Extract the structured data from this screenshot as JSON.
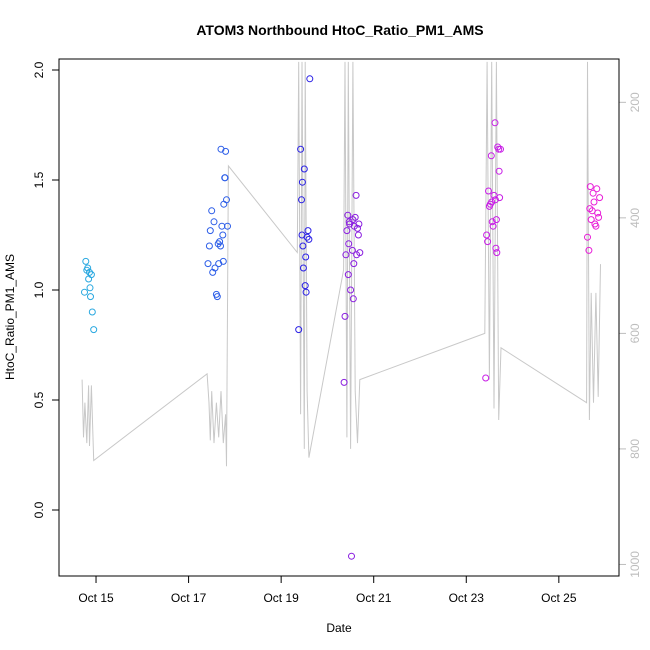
{
  "chart_data": {
    "type": "scatter",
    "title": "ATOM3 Northbound HtoC_Ratio_PM1_AMS",
    "xlabel": "Date",
    "ylabel": "HtoC_Ratio_PM1_AMS",
    "x_unit": "days (day of October)",
    "xlim": [
      14.2,
      26.3
    ],
    "ylim": [
      -0.3,
      2.05
    ],
    "x_ticks": [
      {
        "value": 15,
        "label": "Oct 15"
      },
      {
        "value": 17,
        "label": "Oct 17"
      },
      {
        "value": 19,
        "label": "Oct 19"
      },
      {
        "value": 21,
        "label": "Oct 21"
      },
      {
        "value": 23,
        "label": "Oct 23"
      },
      {
        "value": 25,
        "label": "Oct 25"
      }
    ],
    "y_ticks": [
      {
        "value": 0.0,
        "label": "0.0"
      },
      {
        "value": 0.5,
        "label": "0.5"
      },
      {
        "value": 1.0,
        "label": "1.0"
      },
      {
        "value": 1.5,
        "label": "1.5"
      },
      {
        "value": 2.0,
        "label": "2.0"
      }
    ],
    "secondary_axis": {
      "side": "right",
      "reversed": true,
      "lim": [
        1020,
        125
      ],
      "color": "#bdbdbd",
      "ticks": [
        {
          "value": 200,
          "label": "200"
        },
        {
          "value": 400,
          "label": "400"
        },
        {
          "value": 600,
          "label": "600"
        },
        {
          "value": 800,
          "label": "800"
        },
        {
          "value": 1000,
          "label": "1000"
        }
      ]
    },
    "grid": false,
    "legend": "none",
    "marker": "open-circle",
    "series": [
      {
        "color": "#29a8e0",
        "points": [
          [
            14.75,
            0.99
          ],
          [
            14.78,
            1.13
          ],
          [
            14.8,
            1.09
          ],
          [
            14.82,
            1.1
          ],
          [
            14.84,
            1.05
          ],
          [
            14.86,
            1.08
          ],
          [
            14.87,
            1.01
          ],
          [
            14.88,
            0.97
          ],
          [
            14.9,
            1.07
          ],
          [
            14.92,
            0.9
          ],
          [
            14.95,
            0.82
          ]
        ]
      },
      {
        "color": "#2d5ee8",
        "points": [
          [
            17.42,
            1.12
          ],
          [
            17.45,
            1.2
          ],
          [
            17.47,
            1.27
          ],
          [
            17.5,
            1.36
          ],
          [
            17.52,
            1.08
          ],
          [
            17.55,
            1.31
          ],
          [
            17.57,
            1.1
          ],
          [
            17.6,
            0.98
          ],
          [
            17.62,
            0.97
          ],
          [
            17.64,
            1.21
          ],
          [
            17.65,
            1.12
          ],
          [
            17.67,
            1.22
          ],
          [
            17.69,
            1.2
          ],
          [
            17.7,
            1.64
          ],
          [
            17.72,
            1.29
          ],
          [
            17.74,
            1.25
          ],
          [
            17.75,
            1.13
          ],
          [
            17.76,
            1.39
          ],
          [
            17.78,
            1.51
          ],
          [
            17.79,
            1.51
          ],
          [
            17.8,
            1.63
          ],
          [
            17.82,
            1.41
          ],
          [
            17.84,
            1.29
          ]
        ]
      },
      {
        "color": "#2a20e6",
        "points": [
          [
            19.38,
            0.82
          ],
          [
            19.42,
            1.64
          ],
          [
            19.44,
            1.41
          ],
          [
            19.45,
            1.25
          ],
          [
            19.46,
            1.49
          ],
          [
            19.47,
            1.2
          ],
          [
            19.48,
            1.1
          ],
          [
            19.5,
            1.55
          ],
          [
            19.52,
            1.02
          ],
          [
            19.53,
            1.15
          ],
          [
            19.54,
            0.99
          ],
          [
            19.56,
            1.24
          ],
          [
            19.58,
            1.27
          ],
          [
            19.6,
            1.23
          ],
          [
            19.62,
            1.96
          ]
        ]
      },
      {
        "color": "#8a1ee0",
        "points": [
          [
            20.38,
            0.88
          ],
          [
            20.4,
            1.16
          ],
          [
            20.42,
            1.27
          ],
          [
            20.44,
            1.34
          ],
          [
            20.46,
            1.21
          ],
          [
            20.47,
            1.31
          ],
          [
            20.48,
            1.3
          ],
          [
            20.5,
            1.0
          ],
          [
            20.52,
            -0.21
          ],
          [
            20.54,
            1.18
          ],
          [
            20.55,
            1.32
          ],
          [
            20.56,
            0.96
          ],
          [
            20.57,
            1.12
          ],
          [
            20.58,
            1.29
          ],
          [
            20.6,
            1.33
          ],
          [
            20.62,
            1.43
          ],
          [
            20.63,
            1.16
          ],
          [
            20.65,
            1.28
          ],
          [
            20.67,
            1.25
          ],
          [
            20.68,
            1.3
          ],
          [
            20.7,
            1.17
          ],
          [
            20.36,
            0.58
          ],
          [
            20.45,
            1.07
          ]
        ]
      },
      {
        "color": "#c81ee6",
        "points": [
          [
            23.42,
            0.6
          ],
          [
            23.44,
            1.25
          ],
          [
            23.46,
            1.22
          ],
          [
            23.48,
            1.45
          ],
          [
            23.5,
            1.38
          ],
          [
            23.52,
            1.39
          ],
          [
            23.54,
            1.61
          ],
          [
            23.55,
            1.4
          ],
          [
            23.56,
            1.31
          ],
          [
            23.58,
            1.29
          ],
          [
            23.6,
            1.43
          ],
          [
            23.62,
            1.76
          ],
          [
            23.63,
            1.41
          ],
          [
            23.64,
            1.19
          ],
          [
            23.65,
            1.32
          ],
          [
            23.66,
            1.17
          ],
          [
            23.68,
            1.65
          ],
          [
            23.7,
            1.64
          ],
          [
            23.71,
            1.54
          ],
          [
            23.72,
            1.42
          ],
          [
            23.74,
            1.64
          ]
        ]
      },
      {
        "color": "#e81ed8",
        "points": [
          [
            25.62,
            1.24
          ],
          [
            25.65,
            1.18
          ],
          [
            25.67,
            1.37
          ],
          [
            25.68,
            1.47
          ],
          [
            25.7,
            1.32
          ],
          [
            25.72,
            1.36
          ],
          [
            25.74,
            1.44
          ],
          [
            25.76,
            1.4
          ],
          [
            25.78,
            1.3
          ],
          [
            25.8,
            1.29
          ],
          [
            25.82,
            1.46
          ],
          [
            25.84,
            1.35
          ],
          [
            25.86,
            1.33
          ],
          [
            25.88,
            1.42
          ]
        ]
      }
    ],
    "secondary_line": {
      "color": "#c8c8c8",
      "points": [
        [
          14.7,
          680
        ],
        [
          14.73,
          780
        ],
        [
          14.76,
          720
        ],
        [
          14.8,
          790
        ],
        [
          14.84,
          690
        ],
        [
          14.86,
          795
        ],
        [
          14.9,
          690
        ],
        [
          14.95,
          820
        ],
        [
          17.4,
          670
        ],
        [
          17.44,
          720
        ],
        [
          17.47,
          785
        ],
        [
          17.5,
          700
        ],
        [
          17.55,
          790
        ],
        [
          17.6,
          720
        ],
        [
          17.65,
          780
        ],
        [
          17.7,
          700
        ],
        [
          17.75,
          790
        ],
        [
          17.8,
          740
        ],
        [
          17.82,
          830
        ],
        [
          17.86,
          310
        ],
        [
          19.35,
          460
        ],
        [
          19.38,
          130
        ],
        [
          19.42,
          740
        ],
        [
          19.45,
          130
        ],
        [
          19.5,
          800
        ],
        [
          19.52,
          130
        ],
        [
          19.56,
          700
        ],
        [
          19.6,
          815
        ],
        [
          20.35,
          490
        ],
        [
          20.38,
          130
        ],
        [
          20.42,
          780
        ],
        [
          20.45,
          130
        ],
        [
          20.5,
          800
        ],
        [
          20.55,
          130
        ],
        [
          20.6,
          700
        ],
        [
          20.65,
          790
        ],
        [
          20.7,
          680
        ],
        [
          23.4,
          600
        ],
        [
          23.45,
          130
        ],
        [
          23.5,
          680
        ],
        [
          23.55,
          130
        ],
        [
          23.6,
          730
        ],
        [
          23.65,
          130
        ],
        [
          23.7,
          750
        ],
        [
          23.75,
          625
        ],
        [
          25.6,
          720
        ],
        [
          25.62,
          130
        ],
        [
          25.66,
          750
        ],
        [
          25.7,
          530
        ],
        [
          25.75,
          720
        ],
        [
          25.8,
          530
        ],
        [
          25.85,
          710
        ],
        [
          25.9,
          480
        ]
      ]
    }
  }
}
